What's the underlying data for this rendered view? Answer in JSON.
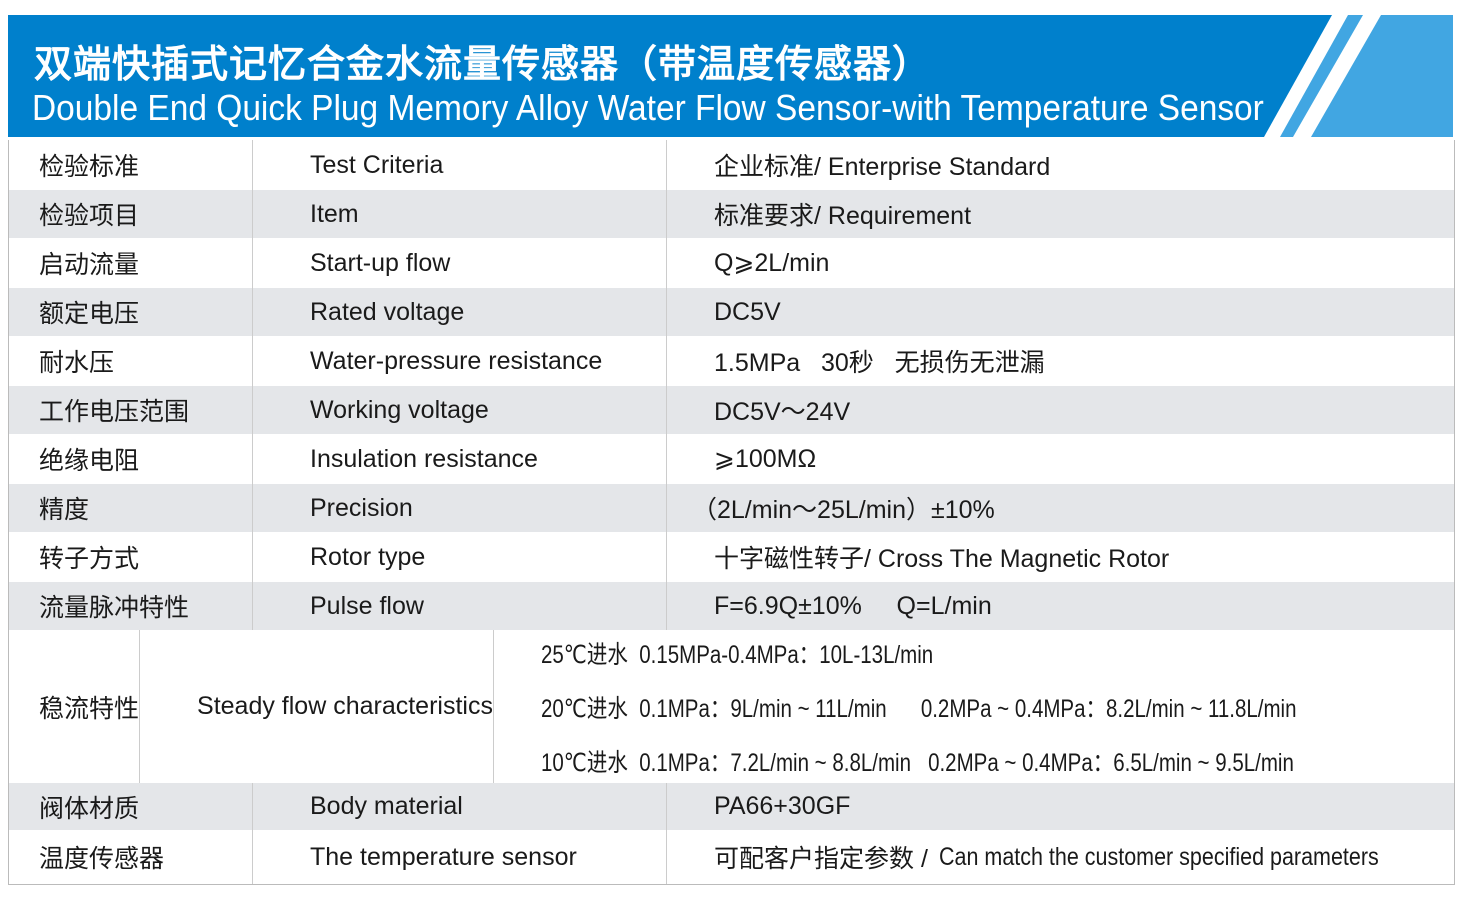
{
  "header": {
    "title_cn": "双端快插式记忆合金水流量传感器（带温度传感器）",
    "title_en": "Double End Quick Plug Memory Alloy Water Flow Sensor-with Temperature Sensor",
    "colors": {
      "primary": "#0080cc",
      "light": "#41a6e2"
    }
  },
  "rows": [
    {
      "cn": "检验标准",
      "en": "Test Criteria",
      "value": "企业标准/ Enterprise Standard"
    },
    {
      "cn": "检验项目",
      "en": "Item",
      "value": "标准要求/ Requirement"
    },
    {
      "cn": "启动流量",
      "en": "Start-up flow",
      "value": "Q⩾2L/min"
    },
    {
      "cn": "额定电压",
      "en": "Rated voltage",
      "value": "DC5V"
    },
    {
      "cn": "耐水压",
      "en": "Water-pressure resistance",
      "value": "1.5MPa   30秒   无损伤无泄漏"
    },
    {
      "cn": "工作电压范围",
      "en": "Working voltage",
      "value": "DC5V～24V"
    },
    {
      "cn": "绝缘电阻",
      "en": "Insulation resistance",
      "value": "⩾100MΩ"
    },
    {
      "cn": "精度",
      "en": "Precision",
      "value": "（2L/min～25L/min）±10%"
    },
    {
      "cn": "转子方式",
      "en": "Rotor type",
      "value": "十字磁性转子/ Cross The Magnetic Rotor"
    },
    {
      "cn": "流量脉冲特性",
      "en": "Pulse flow",
      "value": "F=6.9Q±10%     Q=L/min"
    },
    {
      "cn": "稳流特性",
      "en": "Steady flow characteristics",
      "lines": [
        "25℃进水  0.15MPa-0.4MPa：10L-13L/min",
        "20℃进水  0.1MPa：9L/min ~ 11L/min      0.2MPa ~ 0.4MPa：8.2L/min ~ 11.8L/min",
        "10℃进水  0.1MPa：7.2L/min ~ 8.8L/min   0.2MPa ~ 0.4MPa：6.5L/min ~ 9.5L/min"
      ]
    },
    {
      "cn": "阀体材质",
      "en": "Body material",
      "value": "PA66+30GF"
    },
    {
      "cn": "温度传感器",
      "en": "The temperature sensor",
      "value_cn": "可配客户指定参数 / ",
      "value_en": "Can match the customer specified parameters"
    }
  ]
}
